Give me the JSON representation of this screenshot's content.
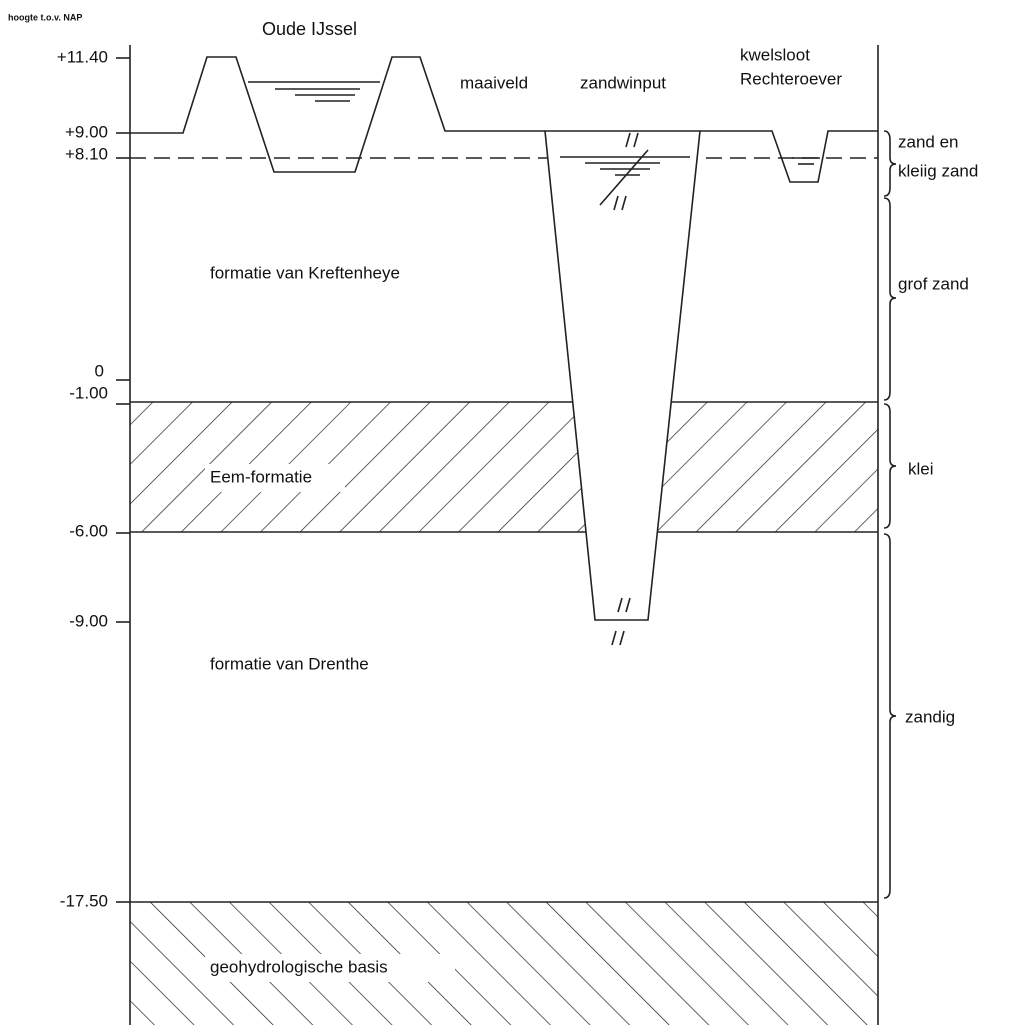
{
  "axis_title": "hoogte t.o.v. NAP",
  "river_label": "Oude IJssel",
  "elevation_labels": [
    "+11.40",
    "+9.00",
    "+8.10",
    "0",
    "-1.00",
    "-6.00",
    "-9.00",
    "-17.50"
  ],
  "column_labels": {
    "maaiveld": "maaiveld",
    "zandwinput": "zandwinput",
    "kwelsloot": "kwelsloot",
    "rechteroever": "Rechteroever"
  },
  "layer_labels": [
    "formatie van Kreftenheye",
    "Eem-formatie",
    "formatie van Drenthe",
    "geohydrologische basis"
  ],
  "soil_labels": [
    "zand en",
    "kleiig zand",
    "grof zand",
    "klei",
    "zandig"
  ]
}
